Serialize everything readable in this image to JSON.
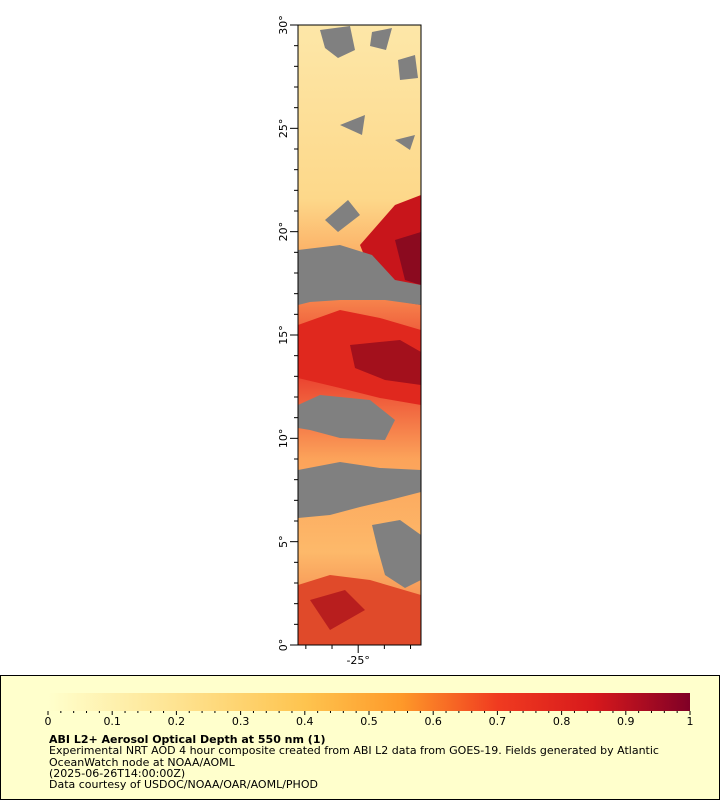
{
  "map": {
    "y_axis": {
      "range": [
        0,
        30
      ],
      "ticks": [
        {
          "value": 0,
          "label": "0°"
        },
        {
          "value": 5,
          "label": "5°"
        },
        {
          "value": 10,
          "label": "10°"
        },
        {
          "value": 15,
          "label": "15°"
        },
        {
          "value": 20,
          "label": "20°"
        },
        {
          "value": 25,
          "label": "25°"
        },
        {
          "value": 30,
          "label": "30°"
        }
      ]
    },
    "x_axis": {
      "ticks": [
        {
          "value": -25,
          "label": "-25°"
        }
      ]
    },
    "colors": {
      "no_data": "#808080",
      "low": "#fff0c0",
      "mid": "#fdae61",
      "high": "#e31a1c",
      "max": "#800026"
    }
  },
  "legend": {
    "colorbar": {
      "min": 0,
      "max": 1,
      "tick_labels": [
        "0",
        "0.1",
        "0.2",
        "0.3",
        "0.4",
        "0.5",
        "0.6",
        "0.7",
        "0.8",
        "0.9",
        "1"
      ]
    },
    "title": "ABI L2+ Aerosol Optical Depth at 550 nm (1)",
    "description": "Experimental NRT AOD 4 hour composite created from ABI L2 data from GOES-19. Fields generated by Atlantic OceanWatch node at NOAA/AOML",
    "timestamp": "(2025-06-26T14:00:00Z)",
    "credit": "Data courtesy of USDOC/NOAA/OAR/AOML/PHOD"
  }
}
